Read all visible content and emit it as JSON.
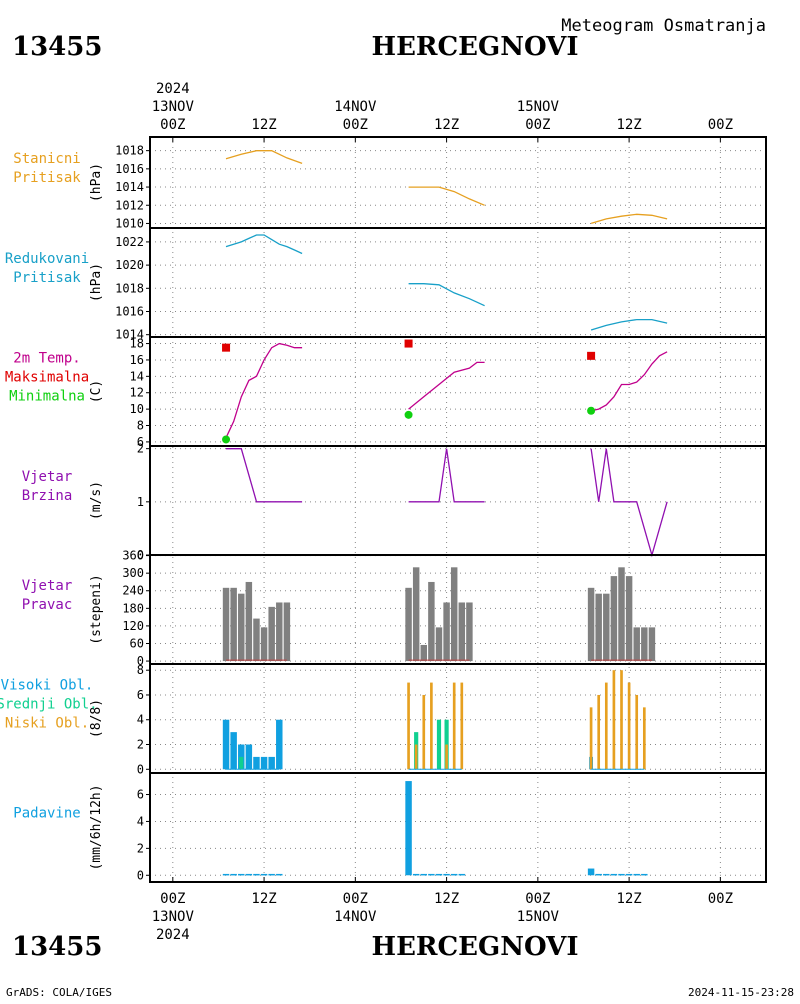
{
  "header": {
    "station_id": "13455",
    "station_name": "HERCEGNOVI",
    "subtitle": "Meteogram Osmatranja"
  },
  "time_axis": {
    "year": "2024",
    "days": [
      {
        "date": "13NOV",
        "offset_hours": 0
      },
      {
        "date": "14NOV",
        "offset_hours": 24
      },
      {
        "date": "15NOV",
        "offset_hours": 48
      }
    ],
    "tick_labels": [
      "00Z",
      "12Z"
    ],
    "range_hours": [
      -3,
      78
    ]
  },
  "footer": {
    "credit": "GrADS: COLA/IGES",
    "timestamp": "2024-11-15-23:28"
  },
  "colors": {
    "pressure": "#e6a020",
    "reduced_pressure": "#18a0c8",
    "temperature": "#c0008c",
    "max_temp": "#e00000",
    "min_temp": "#10d010",
    "wind": "#9010b0",
    "wind_dir_bar": "#808080",
    "high_cloud": "#10a0e0",
    "mid_cloud": "#10d090",
    "low_cloud": "#e6a020",
    "precip": "#10a0e0"
  },
  "chart_data": [
    {
      "type": "line",
      "name": "station_pressure",
      "labels": [
        "Stanicni",
        "Pritisak"
      ],
      "ylabel": "(hPa)",
      "ylim": [
        1009.5,
        1019.5
      ],
      "yticks": [
        1010,
        1012,
        1014,
        1016,
        1018
      ],
      "segments": [
        {
          "x": [
            7,
            9,
            11,
            13,
            15,
            17
          ],
          "y": [
            1017.1,
            1017.6,
            1018.0,
            1018.0,
            1017.2,
            1016.6
          ]
        },
        {
          "x": [
            31,
            33,
            35,
            37,
            39,
            41
          ],
          "y": [
            1014.0,
            1014.0,
            1014.0,
            1013.5,
            1012.7,
            1012.0
          ]
        },
        {
          "x": [
            55,
            57,
            59,
            61,
            63,
            65
          ],
          "y": [
            1010.0,
            1010.5,
            1010.8,
            1011.0,
            1010.9,
            1010.5
          ]
        }
      ]
    },
    {
      "type": "line",
      "name": "reduced_pressure",
      "labels": [
        "Redukovani",
        "Pritisak"
      ],
      "ylabel": "(hPa)",
      "ylim": [
        1013.8,
        1023.2
      ],
      "yticks": [
        1014,
        1016,
        1018,
        1020,
        1022
      ],
      "segments": [
        {
          "x": [
            7,
            8,
            9,
            10,
            11,
            12,
            13,
            14,
            15,
            16,
            17
          ],
          "y": [
            1021.6,
            1021.8,
            1022.0,
            1022.3,
            1022.6,
            1022.6,
            1022.2,
            1021.8,
            1021.6,
            1021.3,
            1021.0
          ]
        },
        {
          "x": [
            31,
            33,
            35,
            37,
            39,
            41
          ],
          "y": [
            1018.4,
            1018.4,
            1018.3,
            1017.6,
            1017.1,
            1016.5
          ]
        },
        {
          "x": [
            55,
            57,
            59,
            61,
            63,
            65
          ],
          "y": [
            1014.4,
            1014.8,
            1015.1,
            1015.3,
            1015.3,
            1015.0
          ]
        }
      ]
    },
    {
      "type": "line",
      "name": "temperature_2m",
      "labels": [
        "2m Temp.",
        "Maksimalna",
        "Minimalna"
      ],
      "ylabel": "(C)",
      "ylim": [
        5.5,
        18.8
      ],
      "yticks": [
        6,
        8,
        10,
        12,
        14,
        16,
        18
      ],
      "segments": [
        {
          "x": [
            7,
            8,
            9,
            10,
            11,
            12,
            13,
            14,
            15,
            16,
            17
          ],
          "y": [
            6.5,
            8.5,
            11.5,
            13.5,
            14.0,
            16.0,
            17.5,
            18.0,
            17.8,
            17.5,
            17.5
          ]
        },
        {
          "x": [
            31,
            33,
            35,
            37,
            39,
            40,
            41
          ],
          "y": [
            10.0,
            11.5,
            13.0,
            14.5,
            15.0,
            15.7,
            15.7
          ]
        },
        {
          "x": [
            55,
            56,
            57,
            58,
            59,
            60,
            61,
            62,
            63,
            64,
            65
          ],
          "y": [
            9.8,
            10.0,
            10.5,
            11.5,
            13.0,
            13.0,
            13.3,
            14.2,
            15.5,
            16.5,
            17.0
          ]
        }
      ],
      "max_points": [
        {
          "x": 7,
          "y": 17.5
        },
        {
          "x": 31,
          "y": 18.0
        },
        {
          "x": 55,
          "y": 16.5
        }
      ],
      "min_points": [
        {
          "x": 7,
          "y": 6.3
        },
        {
          "x": 31,
          "y": 9.3
        },
        {
          "x": 55,
          "y": 9.8
        }
      ]
    },
    {
      "type": "line",
      "name": "wind_speed",
      "labels": [
        "Vjetar",
        "Brzina"
      ],
      "ylabel": "(m/s)",
      "ylim": [
        0,
        2.05
      ],
      "yticks": [
        0,
        1,
        2
      ],
      "segments": [
        {
          "x": [
            7,
            8,
            9,
            10,
            11,
            12,
            13,
            14,
            15,
            16,
            17
          ],
          "y": [
            2,
            2,
            2,
            1.5,
            1,
            1,
            1,
            1,
            1,
            1,
            1
          ]
        },
        {
          "x": [
            31,
            32,
            33,
            34,
            35,
            36,
            37,
            38,
            39,
            40,
            41
          ],
          "y": [
            1,
            1,
            1,
            1,
            1,
            2,
            1,
            1,
            1,
            1,
            1
          ]
        },
        {
          "x": [
            55,
            56,
            57,
            58,
            59,
            60,
            61,
            62,
            63,
            64,
            65
          ],
          "y": [
            2,
            1,
            2,
            1,
            1,
            1,
            1,
            0.5,
            0,
            0.5,
            1
          ]
        }
      ]
    },
    {
      "type": "bar",
      "name": "wind_direction",
      "labels": [
        "Vjetar",
        "Pravac"
      ],
      "ylabel": "(stepeni)",
      "ylim": [
        -10,
        362
      ],
      "yticks": [
        0,
        60,
        120,
        180,
        240,
        300,
        360
      ],
      "x": [
        7,
        8,
        9,
        10,
        11,
        12,
        13,
        14,
        15,
        31,
        32,
        33,
        34,
        35,
        36,
        37,
        38,
        39,
        55,
        56,
        57,
        58,
        59,
        60,
        61,
        62,
        63
      ],
      "values": [
        250,
        250,
        230,
        270,
        145,
        115,
        185,
        200,
        200,
        250,
        320,
        55,
        270,
        115,
        200,
        320,
        200,
        200,
        250,
        230,
        230,
        290,
        320,
        290,
        115,
        115,
        115
      ]
    },
    {
      "type": "bar",
      "name": "cloud_cover",
      "labels": [
        "Visoki Obl.",
        "Srednji Obl.",
        "Niski Obl."
      ],
      "ylabel": "(8/8)",
      "ylim": [
        -0.3,
        8.5
      ],
      "yticks": [
        0,
        2,
        4,
        6,
        8
      ],
      "series": [
        {
          "key": "high",
          "x": [
            7,
            8,
            9,
            10,
            11,
            12,
            13,
            14
          ],
          "values": [
            4,
            3,
            2,
            2,
            1,
            1,
            1,
            4
          ]
        },
        {
          "key": "mid",
          "x": [
            9,
            32,
            35,
            36
          ],
          "values": [
            1,
            3,
            4,
            4
          ]
        },
        {
          "key": "low",
          "x": [
            31,
            32,
            33,
            34,
            36,
            37,
            38
          ],
          "values": [
            7,
            2,
            6,
            7,
            2,
            7,
            7
          ]
        },
        {
          "key": "high2",
          "x": [
            55
          ],
          "values": [
            1
          ]
        },
        {
          "key": "low2",
          "x": [
            55,
            56,
            57,
            58,
            59,
            60,
            61,
            62
          ],
          "values": [
            5,
            6,
            7,
            8,
            8,
            7,
            6,
            5
          ]
        }
      ]
    },
    {
      "type": "bar",
      "name": "precipitation",
      "labels": [
        "Padavine"
      ],
      "ylabel": "(mm/6h/12h)",
      "ylim": [
        -0.5,
        7.6
      ],
      "yticks": [
        0,
        2,
        4,
        6
      ],
      "x": [
        7,
        8,
        9,
        10,
        11,
        12,
        13,
        14,
        31,
        32,
        33,
        34,
        35,
        36,
        37,
        38,
        55,
        56,
        57,
        58,
        59,
        60,
        61,
        62
      ],
      "values": [
        0.1,
        0.1,
        0.1,
        0.1,
        0.1,
        0.1,
        0.1,
        0.1,
        7.0,
        0.1,
        0.1,
        0.1,
        0.1,
        0.1,
        0.1,
        0.1,
        0.5,
        0.1,
        0.1,
        0.1,
        0.1,
        0.1,
        0.1,
        0.1
      ]
    }
  ]
}
